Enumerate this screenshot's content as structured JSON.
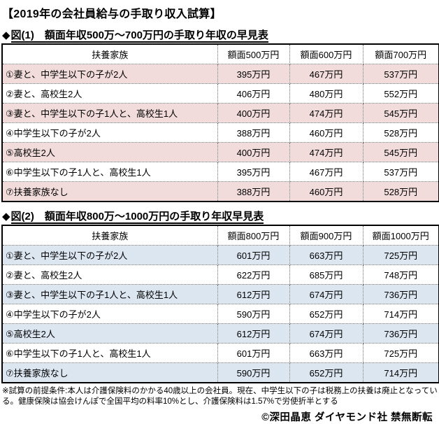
{
  "page": {
    "title": "【2019年の会社員給与の手取り収入試算】",
    "footnote": "※試算の前提条件:本人は介護保険料のかかる40歳以上の会社員。現在、中学生以下の子は税務上の扶養は廃止となっている。健康保険は協会けんぽで全国平均の料率10%とし、介護保険料は1.57%で労使折半とする",
    "copyright": "©深田晶恵 ダイヤモンド社 禁無断転"
  },
  "colors": {
    "table1_highlight": "#F2DCDB",
    "table2_highlight": "#DCE6F1",
    "outer_border": "#000000",
    "inner_border": "#6B6B6B",
    "text": "#000000"
  },
  "figure1": {
    "bullet": "◆",
    "heading": "図(1)　額面年収500万～700万円の手取り年収の早見表"
  },
  "figure2": {
    "bullet": "◆",
    "heading": "図(2)　額面年収800万～1000万円の手取り年収早見表"
  },
  "tables": [
    {
      "name": "table-500-700",
      "highlight_color": "#F2DCDB",
      "headers": [
        "扶養家族",
        "額面500万円",
        "額面600万円",
        "額面700万円"
      ],
      "rows": [
        {
          "label": "①妻と、中学生以下の子が2人",
          "values": [
            "395万円",
            "467万円",
            "537万円"
          ],
          "highlight": true
        },
        {
          "label": "②妻と、高校生2人",
          "values": [
            "406万円",
            "480万円",
            "552万円"
          ],
          "highlight": false
        },
        {
          "label": "③妻と、中学生以下の子1人と、高校生1人",
          "values": [
            "400万円",
            "474万円",
            "545万円"
          ],
          "highlight": true
        },
        {
          "label": "④中学生以下の子が2人",
          "values": [
            "388万円",
            "460万円",
            "528万円"
          ],
          "highlight": false
        },
        {
          "label": "⑤高校生2人",
          "values": [
            "400万円",
            "474万円",
            "545万円"
          ],
          "highlight": true
        },
        {
          "label": "⑥中学生以下の子1人と、高校生1人",
          "values": [
            "395万円",
            "467万円",
            "537万円"
          ],
          "highlight": false
        },
        {
          "label": "⑦扶養家族なし",
          "values": [
            "388万円",
            "460万円",
            "528万円"
          ],
          "highlight": true
        }
      ]
    },
    {
      "name": "table-800-1000",
      "highlight_color": "#DCE6F1",
      "headers": [
        "扶養家族",
        "額面800万円",
        "額面900万円",
        "額面1000万円"
      ],
      "rows": [
        {
          "label": "①妻と、中学生以下の子が2人",
          "values": [
            "601万円",
            "663万円",
            "725万円"
          ],
          "highlight": true
        },
        {
          "label": "②妻と、高校生2人",
          "values": [
            "622万円",
            "685万円",
            "748万円"
          ],
          "highlight": false
        },
        {
          "label": "③妻と、中学生以下の子1人と、高校生1人",
          "values": [
            "612万円",
            "674万円",
            "736万円"
          ],
          "highlight": true
        },
        {
          "label": "④中学生以下の子が2人",
          "values": [
            "590万円",
            "652万円",
            "714万円"
          ],
          "highlight": false
        },
        {
          "label": "⑤高校生2人",
          "values": [
            "612万円",
            "674万円",
            "736万円"
          ],
          "highlight": true
        },
        {
          "label": "⑥中学生以下の子1人と、高校生1人",
          "values": [
            "601万円",
            "663万円",
            "725万円"
          ],
          "highlight": false
        },
        {
          "label": "⑦扶養家族なし",
          "values": [
            "590万円",
            "652万円",
            "714万円"
          ],
          "highlight": true
        }
      ]
    }
  ]
}
